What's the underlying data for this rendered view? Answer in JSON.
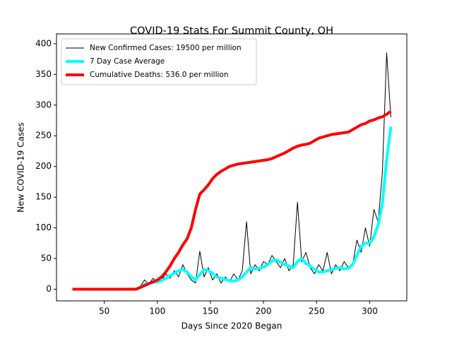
{
  "chart_data": {
    "type": "line",
    "title": "COVID-19 Stats For Summit County, OH",
    "x_label": "Days Since 2020 Began",
    "y_label": "New COVID-19 Cases",
    "x": [
      20,
      24,
      28,
      32,
      36,
      40,
      44,
      48,
      52,
      56,
      60,
      64,
      68,
      72,
      76,
      80,
      84,
      88,
      92,
      96,
      100,
      104,
      108,
      112,
      116,
      120,
      124,
      128,
      132,
      136,
      140,
      144,
      148,
      152,
      156,
      160,
      164,
      168,
      172,
      176,
      180,
      184,
      188,
      192,
      196,
      200,
      204,
      208,
      212,
      216,
      220,
      224,
      228,
      232,
      236,
      240,
      244,
      248,
      252,
      256,
      260,
      264,
      268,
      272,
      276,
      280,
      284,
      288,
      292,
      296,
      300,
      304,
      308,
      312,
      316,
      320
    ],
    "series": [
      {
        "name": "New Confirmed Cases: 19500 per million",
        "color": "#000000",
        "linewidth": 1,
        "values": [
          0,
          0,
          0,
          0,
          0,
          0,
          0,
          0,
          0,
          0,
          0,
          0,
          0,
          0,
          0,
          0,
          5,
          15,
          8,
          18,
          10,
          15,
          25,
          18,
          30,
          20,
          40,
          25,
          15,
          10,
          62,
          20,
          35,
          15,
          25,
          10,
          20,
          12,
          25,
          15,
          30,
          110,
          25,
          40,
          30,
          45,
          40,
          55,
          45,
          35,
          50,
          30,
          40,
          142,
          45,
          60,
          35,
          25,
          40,
          30,
          60,
          25,
          40,
          30,
          45,
          35,
          40,
          80,
          60,
          100,
          70,
          130,
          110,
          190,
          385,
          280
        ]
      },
      {
        "name": "7 Day Case Average",
        "color": "#00ffff",
        "linewidth": 4,
        "values": [
          0,
          0,
          0,
          0,
          0,
          0,
          0,
          0,
          0,
          0,
          0,
          0,
          0,
          0,
          0,
          0,
          3,
          8,
          10,
          11,
          12,
          14,
          18,
          22,
          26,
          30,
          32,
          28,
          20,
          15,
          24,
          32,
          30,
          26,
          20,
          18,
          16,
          14,
          13,
          15,
          20,
          28,
          35,
          33,
          34,
          36,
          40,
          46,
          48,
          44,
          40,
          38,
          35,
          45,
          50,
          42,
          38,
          32,
          28,
          28,
          30,
          32,
          34,
          35,
          33,
          34,
          40,
          55,
          70,
          75,
          75,
          85,
          105,
          140,
          210,
          265
        ]
      },
      {
        "name": "Cumulative Deaths: 536.0 per million",
        "color": "#ff0000",
        "linewidth": 4,
        "values": [
          0,
          0,
          0,
          0,
          0,
          0,
          0,
          0,
          0,
          0,
          0,
          0,
          0,
          0,
          0,
          0,
          3,
          6,
          9,
          12,
          15,
          20,
          28,
          38,
          50,
          60,
          72,
          82,
          100,
          130,
          155,
          162,
          170,
          180,
          187,
          192,
          196,
          200,
          202,
          204,
          205,
          206,
          207,
          208,
          209,
          210,
          211,
          213,
          216,
          219,
          222,
          226,
          230,
          233,
          235,
          236,
          238,
          242,
          246,
          248,
          250,
          252,
          253,
          254,
          255,
          256,
          260,
          264,
          268,
          270,
          274,
          276,
          279,
          281,
          285,
          290
        ]
      }
    ],
    "xlim": [
      5,
      335
    ],
    "ylim": [
      -19,
      416
    ],
    "xticks": [
      50,
      100,
      150,
      200,
      250,
      300
    ],
    "yticks": [
      0,
      50,
      100,
      150,
      200,
      250,
      300,
      350,
      400
    ],
    "legend": "upper left"
  }
}
